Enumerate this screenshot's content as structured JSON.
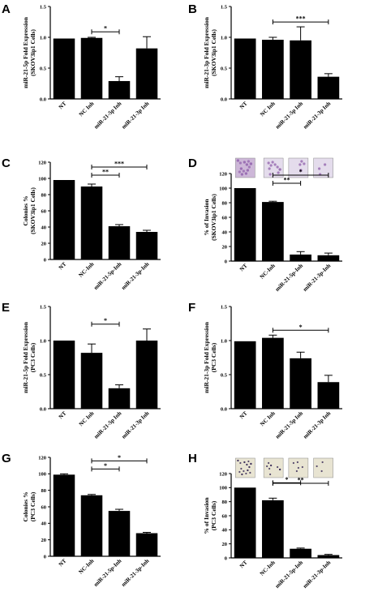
{
  "chart_data": [
    {
      "panel": "A",
      "type": "bar",
      "ylabel": "miR-21-5p Fold Expression",
      "ylabel2": "(SKOV3ip1 Cells)",
      "categories": [
        "NT",
        "NC Inh",
        "miR-21-5p Inh",
        "miR-21-3p Inh"
      ],
      "values": [
        0.98,
        0.99,
        0.29,
        0.82
      ],
      "errors": [
        0.0,
        0.01,
        0.07,
        0.19
      ],
      "ylim": [
        0,
        1.5
      ],
      "ticks": [
        "0.0",
        "0.5",
        "1.0",
        "1.5"
      ],
      "tickvals": [
        0,
        0.5,
        1.0,
        1.5
      ],
      "sig": [
        {
          "from": 1,
          "to": 2,
          "label": "*"
        }
      ]
    },
    {
      "panel": "B",
      "type": "bar",
      "ylabel": "miR-21-3p Fold Expression",
      "ylabel2": "(SKOV3ip1 Cells)",
      "categories": [
        "NT",
        "NC Inh",
        "miR-21-5p Inh",
        "miR-21-3p Inh"
      ],
      "values": [
        0.98,
        0.96,
        0.95,
        0.36
      ],
      "errors": [
        0.0,
        0.04,
        0.22,
        0.05
      ],
      "ylim": [
        0,
        1.5
      ],
      "ticks": [
        "0.0",
        "0.5",
        "1.0",
        "1.5"
      ],
      "tickvals": [
        0,
        0.5,
        1.0,
        1.5
      ],
      "sig": [
        {
          "from": 1,
          "to": 3,
          "label": "***"
        }
      ]
    },
    {
      "panel": "C",
      "type": "bar",
      "ylabel": "Colonies %",
      "ylabel2": "(SKOV3ip1 Cells)",
      "categories": [
        "NT",
        "NC-Inh",
        "miR-21-5p-Inh",
        "miR-21-3p-Inh"
      ],
      "values": [
        98,
        90,
        41,
        34
      ],
      "errors": [
        0,
        3,
        2,
        2
      ],
      "ylim": [
        0,
        120
      ],
      "ticks": [
        "0",
        "20",
        "40",
        "60",
        "80",
        "100",
        "120"
      ],
      "tickvals": [
        0,
        20,
        40,
        60,
        80,
        100,
        120
      ],
      "sig": [
        {
          "from": 1,
          "to": 2,
          "label": "**"
        },
        {
          "from": 1,
          "to": 3,
          "label": "***"
        }
      ]
    },
    {
      "panel": "D",
      "type": "bar",
      "ylabel": "% of Invasion",
      "ylabel2": "(SKOV3ip1 Cells)",
      "categories": [
        "NT",
        "NC-Inh",
        "miR-21-5p-Inh",
        "miR-21-3p-Inh"
      ],
      "values": [
        100,
        81,
        9,
        8
      ],
      "errors": [
        0,
        1,
        4,
        3
      ],
      "ylim": [
        0,
        120
      ],
      "ticks": [
        "0",
        "20",
        "40",
        "60",
        "80",
        "100",
        "120"
      ],
      "tickvals": [
        0,
        20,
        40,
        60,
        80,
        100,
        120
      ],
      "sig": [
        {
          "from": 1,
          "to": 2,
          "label": "**"
        },
        {
          "from": 1,
          "to": 3,
          "label": "*"
        }
      ],
      "images": "micrograph"
    },
    {
      "panel": "E",
      "type": "bar",
      "ylabel": "miR-21-5p Fold Expression",
      "ylabel2": "(PC3 Cells)",
      "categories": [
        "NT",
        "NC Inh",
        "miR-21-5p Inh",
        "miR-21-3p Inh"
      ],
      "values": [
        1.0,
        0.82,
        0.3,
        1.0
      ],
      "errors": [
        0.0,
        0.13,
        0.05,
        0.17
      ],
      "ylim": [
        0,
        1.5
      ],
      "ticks": [
        "0.0",
        "0.5",
        "1.0",
        "1.5"
      ],
      "tickvals": [
        0,
        0.5,
        1.0,
        1.5
      ],
      "sig": [
        {
          "from": 1,
          "to": 2,
          "label": "*"
        }
      ]
    },
    {
      "panel": "F",
      "type": "bar",
      "ylabel": "miR-21-3p Fold Expression",
      "ylabel2": "(PC3 Cells)",
      "categories": [
        "NT",
        "NC Inh",
        "miR-21-5p Inh",
        "miR-21-3p Inh"
      ],
      "values": [
        0.99,
        1.04,
        0.74,
        0.39
      ],
      "errors": [
        0.0,
        0.04,
        0.09,
        0.1
      ],
      "ylim": [
        0,
        1.5
      ],
      "ticks": [
        "0.0",
        "0.5",
        "1.0",
        "1.5"
      ],
      "tickvals": [
        0,
        0.5,
        1.0,
        1.5
      ],
      "sig": [
        {
          "from": 1,
          "to": 3,
          "label": "*"
        }
      ]
    },
    {
      "panel": "G",
      "type": "bar",
      "ylabel": "Colonies %",
      "ylabel2": "(PC3 Cells)",
      "categories": [
        "NT",
        "NC-Inh",
        "miR-21-5p-Inh",
        "miR-21-3p-Inh"
      ],
      "values": [
        99,
        74,
        55,
        28
      ],
      "errors": [
        1,
        1,
        2,
        1
      ],
      "ylim": [
        0,
        120
      ],
      "ticks": [
        "0",
        "20",
        "40",
        "60",
        "80",
        "100",
        "120"
      ],
      "tickvals": [
        0,
        20,
        40,
        60,
        80,
        100,
        120
      ],
      "sig": [
        {
          "from": 1,
          "to": 2,
          "label": "*"
        },
        {
          "from": 1,
          "to": 3,
          "label": "*"
        }
      ]
    },
    {
      "panel": "H",
      "type": "bar",
      "ylabel": "% of Invasion",
      "ylabel2": "(PC3 Cells)",
      "categories": [
        "NT",
        "NC-Inh",
        "miR-21-5p-Inh",
        "miR-21-3p-Inh"
      ],
      "values": [
        100,
        82,
        13,
        4
      ],
      "errors": [
        0,
        3,
        1,
        1
      ],
      "ylim": [
        0,
        120
      ],
      "ticks": [
        "0",
        "20",
        "40",
        "60",
        "80",
        "100",
        "120"
      ],
      "tickvals": [
        0,
        20,
        40,
        60,
        80,
        100,
        120
      ],
      "sig": [
        {
          "from": 1,
          "to": 2,
          "label": "*"
        },
        {
          "from": 1,
          "to": 3,
          "label": "**"
        }
      ],
      "images": "micrograph"
    }
  ],
  "colors": {
    "bar": "#000000",
    "axis": "#000000",
    "micrograph_stain": "#9a6fb3"
  }
}
